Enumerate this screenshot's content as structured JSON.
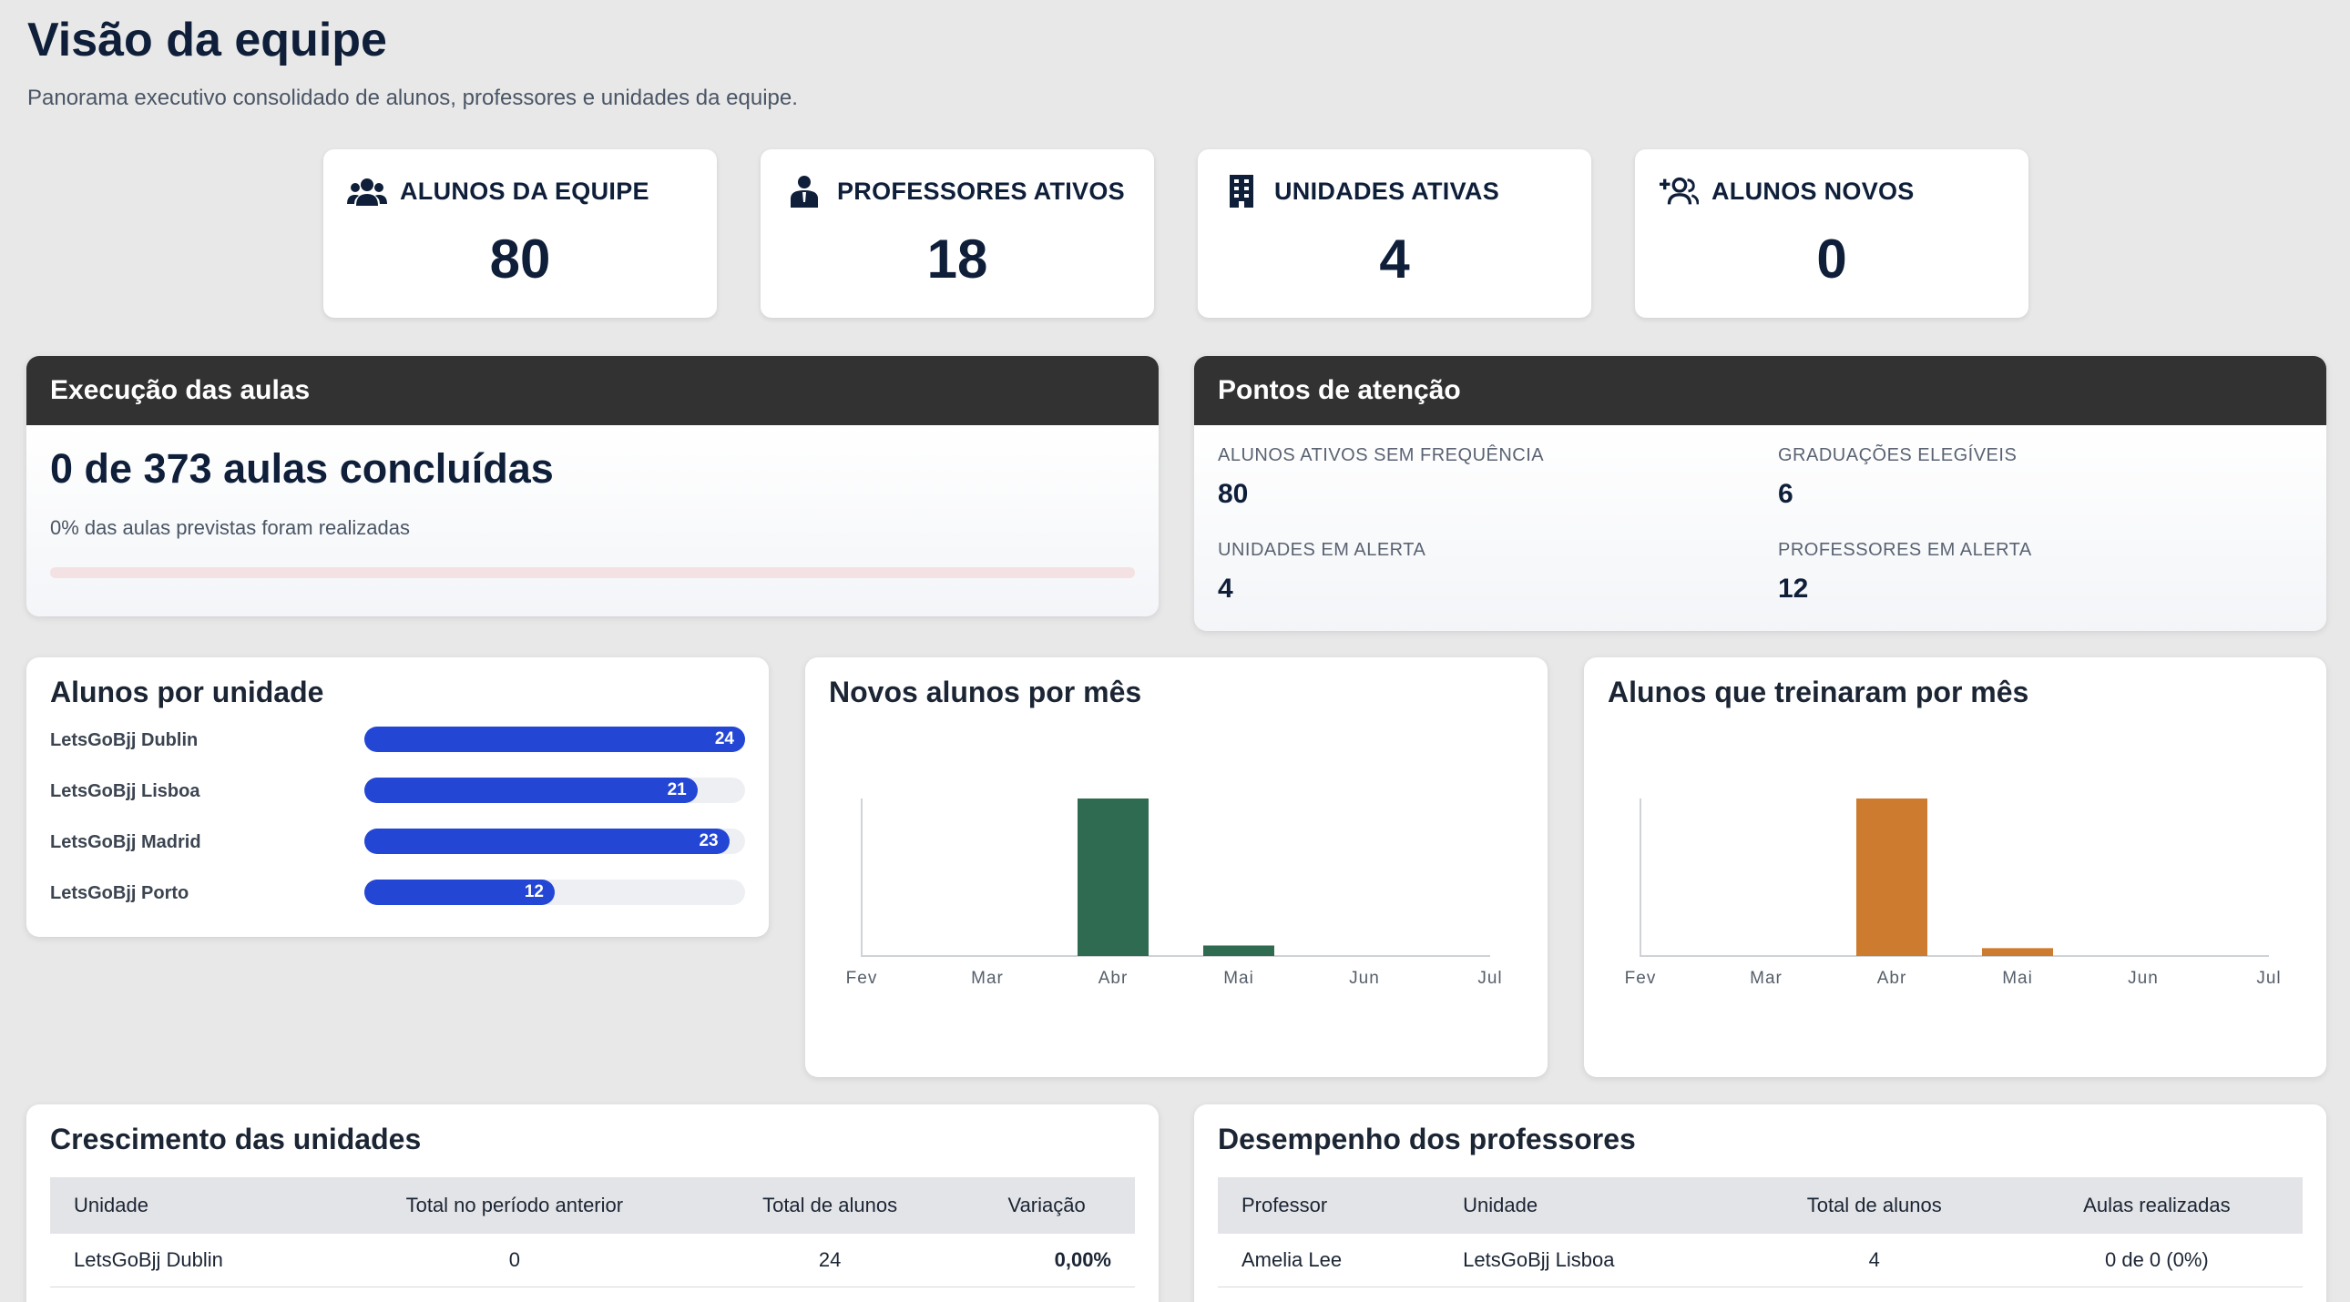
{
  "header": {
    "title": "Visão da equipe",
    "subtitle": "Panorama executivo consolidado de alunos, professores e unidades da equipe."
  },
  "kpis": [
    {
      "label": "ALUNOS DA EQUIPE",
      "value": "80",
      "icon": "users-icon"
    },
    {
      "label": "PROFESSORES ATIVOS",
      "value": "18",
      "icon": "teacher-icon"
    },
    {
      "label": "UNIDADES ATIVAS",
      "value": "4",
      "icon": "building-icon"
    },
    {
      "label": "ALUNOS NOVOS",
      "value": "0",
      "icon": "user-plus-icon"
    }
  ],
  "execution": {
    "title": "Execução das aulas",
    "headline": "0 de 373 aulas concluídas",
    "subtext": "0% das aulas previstas foram realizadas",
    "progress": 0
  },
  "attention": {
    "title": "Pontos de atenção",
    "items": [
      {
        "label": "ALUNOS ATIVOS SEM FREQUÊNCIA",
        "value": "80"
      },
      {
        "label": "GRADUAÇÕES ELEGÍVEIS",
        "value": "6"
      },
      {
        "label": "UNIDADES EM ALERTA",
        "value": "4"
      },
      {
        "label": "PROFESSORES EM ALERTA",
        "value": "12"
      }
    ]
  },
  "students_by_unit": {
    "title": "Alunos por unidade",
    "max": 24,
    "rows": [
      {
        "label": "LetsGoBjj Dublin",
        "value": 24,
        "value_text": "24"
      },
      {
        "label": "LetsGoBjj Lisboa",
        "value": 21,
        "value_text": "21"
      },
      {
        "label": "LetsGoBjj Madrid",
        "value": 23,
        "value_text": "23"
      },
      {
        "label": "LetsGoBjj Porto",
        "value": 12,
        "value_text": "12"
      }
    ]
  },
  "colors": {
    "accent_blue": "#2346d5",
    "new_students_bar": "#2f6b50",
    "trained_bar": "#cd7b2f",
    "dark_header": "#323232"
  },
  "chart_data": [
    {
      "type": "bar",
      "title": "Novos alunos por mês",
      "categories": [
        "Fev",
        "Mar",
        "Abr",
        "Mai",
        "Jun",
        "Jul"
      ],
      "values": [
        0,
        0,
        30,
        2,
        0,
        0
      ],
      "ylim": [
        0,
        30
      ],
      "color": "#2f6b50",
      "grid": false
    },
    {
      "type": "bar",
      "title": "Alunos que treinaram por mês",
      "categories": [
        "Fev",
        "Mar",
        "Abr",
        "Mai",
        "Jun",
        "Jul"
      ],
      "values": [
        0,
        0,
        30,
        1.5,
        0,
        0
      ],
      "ylim": [
        0,
        30
      ],
      "color": "#cd7b2f",
      "grid": false
    }
  ],
  "growth": {
    "title": "Crescimento das unidades",
    "columns": [
      "Unidade",
      "Total no período anterior",
      "Total de alunos",
      "Variação"
    ],
    "rows": [
      {
        "unit": "LetsGoBjj Dublin",
        "previous": "0",
        "total": "24",
        "variation": "0,00%"
      }
    ]
  },
  "teachers": {
    "title": "Desempenho dos professores",
    "columns": [
      "Professor",
      "Unidade",
      "Total de alunos",
      "Aulas realizadas"
    ],
    "rows": [
      {
        "name": "Amelia Lee",
        "unit": "LetsGoBjj Lisboa",
        "students": "4",
        "classes": "0 de 0 (0%)"
      }
    ]
  }
}
